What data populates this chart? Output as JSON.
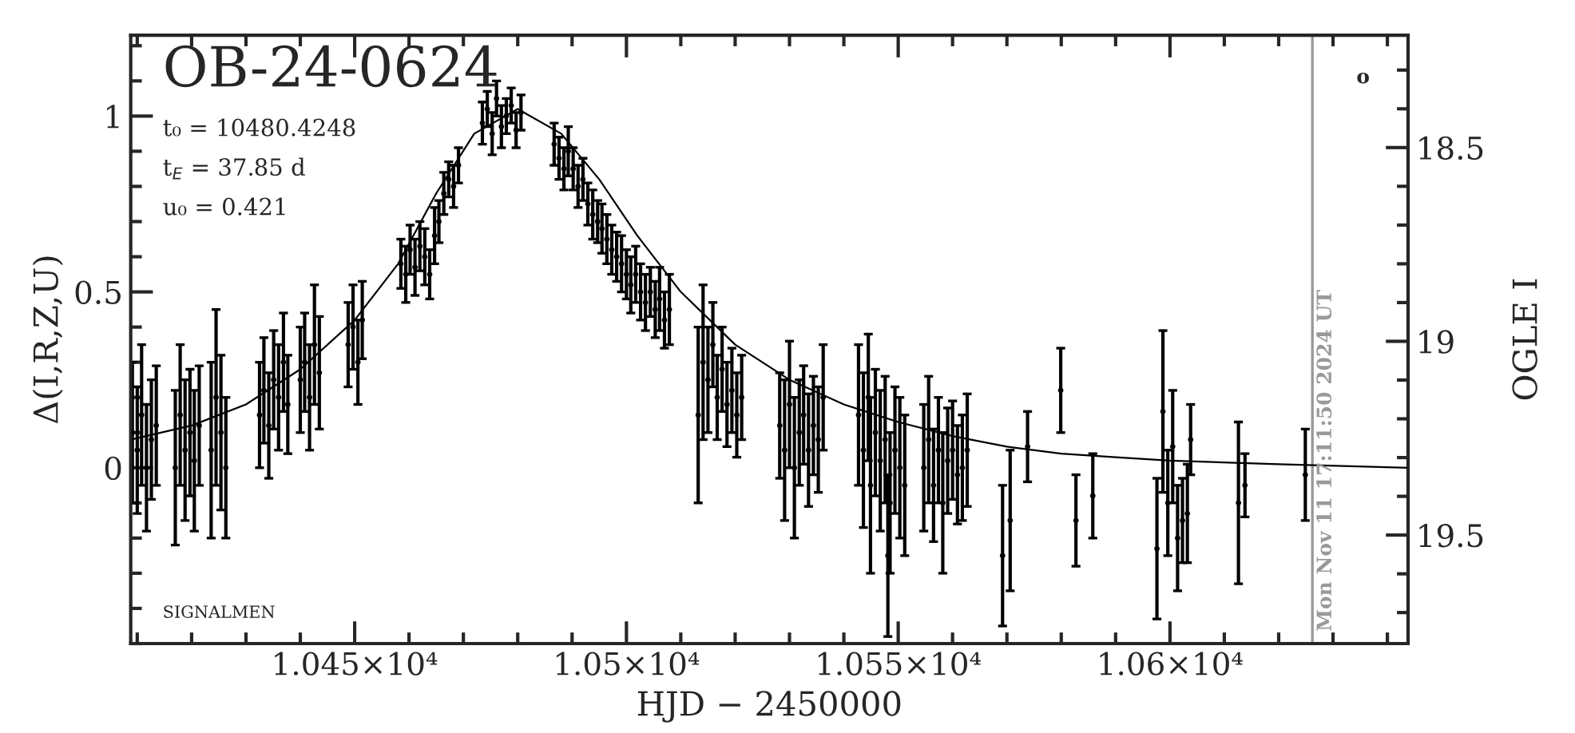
{
  "chart_data": {
    "type": "scatter",
    "title": "OB-24-0624",
    "xlabel": "HJD − 2450000",
    "ylabel": "Δ(I,R,Z,U)",
    "y2label": "OGLE I",
    "annotations": [
      "t₀ = 10480.4248",
      "t$_{E}$ = 37.85 d",
      "u₀ = 0.421",
      "SIGNALMEN",
      "o",
      "Mon Nov 11 17:11:50 2024 UT"
    ],
    "xlim": [
      10408.8,
      10643.8
    ],
    "xticks": [
      {
        "value": 10450,
        "label": "1.045×10⁴"
      },
      {
        "value": 10500,
        "label": "1.05×10⁴"
      },
      {
        "value": 10550,
        "label": "1.055×10⁴"
      },
      {
        "value": 10600,
        "label": "1.06×10⁴"
      }
    ],
    "ylim": [
      -0.5,
      1.23
    ],
    "yticks": [
      0,
      0.5,
      1
    ],
    "y2lim": [
      19.78,
      18.21
    ],
    "y2ticks": [
      18.5,
      19,
      19.5
    ],
    "ref_lines": [
      {
        "axis": "x",
        "value": 10626.2,
        "color": "#999999"
      }
    ],
    "marker": "circle",
    "series": [
      {
        "color": "#000000",
        "x": [
          10409.1,
          10410.0,
          10410.8,
          10411.7,
          10412.6,
          10413.5,
          10417.0,
          10417.9,
          10418.8,
          10419.7,
          10420.5,
          10421.4,
          10423.6,
          10424.5,
          10425.4,
          10426.3,
          10432.5,
          10433.3,
          10434.2,
          10435.1,
          10436.0,
          10436.9,
          10437.7,
          10440.0,
          10440.8,
          10441.7,
          10442.6,
          10443.5,
          10448.8,
          10449.7,
          10450.6,
          10451.4,
          10458.5,
          10459.4,
          10460.2,
          10461.1,
          10462.0,
          10462.9,
          10463.8,
          10464.7,
          10465.5,
          10466.4,
          10467.3,
          10468.2,
          10469.1,
          10473.5,
          10474.4,
          10475.3,
          10476.1,
          10477.0,
          10477.9,
          10478.8,
          10479.7,
          10480.6,
          10486.7,
          10487.6,
          10488.5,
          10489.3,
          10490.2,
          10491.1,
          10492.0,
          10492.9,
          10493.8,
          10494.7,
          10495.5,
          10496.4,
          10497.3,
          10498.2,
          10499.1,
          10500.0,
          10500.8,
          10501.7,
          10502.6,
          10503.5,
          10504.4,
          10505.3,
          10506.1,
          10507.0,
          10507.9,
          10513.2,
          10514.1,
          10515.0,
          10515.9,
          10516.7,
          10517.6,
          10518.5,
          10519.4,
          10520.3,
          10521.2,
          10528.2,
          10529.1,
          10530.0,
          10530.9,
          10531.8,
          10532.6,
          10533.5,
          10534.4,
          10535.3,
          10536.2,
          10542.7,
          10543.6,
          10544.5,
          10544.9,
          10545.8,
          10546.7,
          10547.6,
          10548.1,
          10548.5,
          10549.4,
          10550.3,
          10551.2,
          10554.7,
          10555.6,
          10556.5,
          10557.4,
          10558.2,
          10559.1,
          10560.0,
          10560.9,
          10561.8,
          10562.7,
          10569.2,
          10570.6,
          10573.8,
          10579.9,
          10582.7,
          10585.8,
          10597.6,
          10598.7,
          10599.6,
          10600.5,
          10601.4,
          10602.3,
          10603.2,
          10603.8,
          10612.6,
          10613.8,
          10624.9
        ],
        "values": [
          0.1,
          0.05,
          0.15,
          0.0,
          0.08,
          0.12,
          0.0,
          0.15,
          0.05,
          0.1,
          0.02,
          0.12,
          0.05,
          0.2,
          0.1,
          0.0,
          0.15,
          0.22,
          0.12,
          0.25,
          0.2,
          0.3,
          0.18,
          0.25,
          0.3,
          0.2,
          0.35,
          0.27,
          0.35,
          0.4,
          0.3,
          0.42,
          0.58,
          0.55,
          0.62,
          0.57,
          0.63,
          0.6,
          0.55,
          0.66,
          0.7,
          0.78,
          0.82,
          0.8,
          0.86,
          0.98,
          1.02,
          0.95,
          1.05,
          0.97,
          1.0,
          1.03,
          0.96,
          1.01,
          0.92,
          0.88,
          0.85,
          0.9,
          0.85,
          0.8,
          0.82,
          0.75,
          0.72,
          0.7,
          0.68,
          0.65,
          0.62,
          0.6,
          0.58,
          0.55,
          0.52,
          0.55,
          0.5,
          0.47,
          0.5,
          0.45,
          0.48,
          0.42,
          0.45,
          0.15,
          0.3,
          0.25,
          0.35,
          0.2,
          0.28,
          0.18,
          0.22,
          0.15,
          0.2,
          0.12,
          0.05,
          0.18,
          0.0,
          0.1,
          0.15,
          0.05,
          0.12,
          0.08,
          0.2,
          0.15,
          0.05,
          0.2,
          -0.05,
          0.1,
          0.02,
          0.08,
          -0.25,
          -0.1,
          0.05,
          0.0,
          -0.05,
          0.0,
          0.08,
          -0.05,
          0.05,
          -0.1,
          0.02,
          0.05,
          -0.02,
          0.0,
          0.05,
          -0.25,
          -0.15,
          0.06,
          0.22,
          -0.15,
          -0.08,
          -0.23,
          0.16,
          -0.1,
          0.06,
          -0.2,
          -0.15,
          -0.13,
          0.08,
          -0.1,
          -0.05,
          -0.02
        ],
        "errors": [
          0.2,
          0.18,
          0.2,
          0.18,
          0.17,
          0.17,
          0.22,
          0.2,
          0.2,
          0.18,
          0.2,
          0.17,
          0.25,
          0.25,
          0.22,
          0.2,
          0.15,
          0.15,
          0.15,
          0.14,
          0.15,
          0.14,
          0.14,
          0.15,
          0.14,
          0.15,
          0.17,
          0.16,
          0.12,
          0.12,
          0.12,
          0.11,
          0.07,
          0.08,
          0.07,
          0.08,
          0.07,
          0.08,
          0.07,
          0.08,
          0.06,
          0.06,
          0.05,
          0.06,
          0.05,
          0.06,
          0.05,
          0.06,
          0.05,
          0.06,
          0.05,
          0.05,
          0.05,
          0.05,
          0.06,
          0.06,
          0.06,
          0.07,
          0.06,
          0.06,
          0.06,
          0.06,
          0.07,
          0.06,
          0.07,
          0.07,
          0.07,
          0.07,
          0.08,
          0.07,
          0.08,
          0.08,
          0.08,
          0.08,
          0.07,
          0.08,
          0.09,
          0.08,
          0.1,
          0.25,
          0.22,
          0.15,
          0.12,
          0.12,
          0.12,
          0.12,
          0.12,
          0.12,
          0.12,
          0.15,
          0.2,
          0.18,
          0.2,
          0.15,
          0.14,
          0.16,
          0.14,
          0.15,
          0.15,
          0.2,
          0.22,
          0.18,
          0.25,
          0.18,
          0.2,
          0.18,
          0.23,
          0.2,
          0.18,
          0.2,
          0.2,
          0.18,
          0.18,
          0.16,
          0.15,
          0.2,
          0.15,
          0.14,
          0.14,
          0.15,
          0.16,
          0.2,
          0.2,
          0.1,
          0.12,
          0.13,
          0.12,
          0.2,
          0.23,
          0.15,
          0.16,
          0.15,
          0.12,
          0.14,
          0.1,
          0.23,
          0.09,
          0.13
        ]
      },
      {
        "type": "line",
        "color": "#000000",
        "line_style": "solid",
        "marker": "none",
        "x": [
          10408.8,
          10420,
          10430,
          10440,
          10450,
          10458,
          10465,
          10472,
          10480,
          10488,
          10495,
          10502,
          10510,
          10520,
          10530,
          10540,
          10550,
          10560,
          10570,
          10580,
          10590,
          10600,
          10620,
          10643.8
        ],
        "values": [
          0.08,
          0.12,
          0.18,
          0.28,
          0.42,
          0.58,
          0.78,
          0.95,
          1.02,
          0.95,
          0.82,
          0.66,
          0.5,
          0.35,
          0.25,
          0.18,
          0.13,
          0.09,
          0.06,
          0.04,
          0.03,
          0.02,
          0.01,
          0.0
        ]
      }
    ]
  }
}
